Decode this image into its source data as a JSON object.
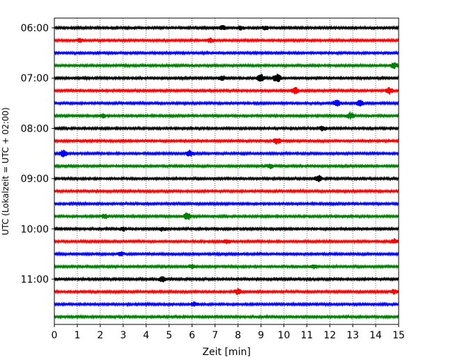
{
  "chart_data": {
    "type": "line",
    "title": "",
    "xlabel": "Zeit  [min]",
    "ylabel": "UTC (Lokalzeit = UTC + 02:00)",
    "xlim": [
      0,
      15
    ],
    "x_ticks": [
      "0",
      "1",
      "2",
      "3",
      "4",
      "5",
      "6",
      "7",
      "8",
      "9",
      "10",
      "11",
      "12",
      "13",
      "14",
      "15"
    ],
    "y_ticks": [
      "06:00",
      "07:00",
      "08:00",
      "09:00",
      "10:00",
      "11:00"
    ],
    "grid": "vertical dotted at each minute",
    "trace_minutes": 15,
    "trace_start": "06:00",
    "trace_count": 24,
    "colors": [
      "#000000",
      "#ff0000",
      "#0000ff",
      "#008000"
    ],
    "events": [
      {
        "trace": 0,
        "minute": 7.3,
        "amp": 1.6
      },
      {
        "trace": 0,
        "minute": 8.1,
        "amp": 1.4
      },
      {
        "trace": 0,
        "minute": 9.2,
        "amp": 1.3
      },
      {
        "trace": 1,
        "minute": 1.1,
        "amp": 1.4
      },
      {
        "trace": 1,
        "minute": 6.8,
        "amp": 1.4
      },
      {
        "trace": 3,
        "minute": 14.8,
        "amp": 1.8
      },
      {
        "trace": 4,
        "minute": 7.3,
        "amp": 2.0
      },
      {
        "trace": 4,
        "minute": 9.0,
        "amp": 2.6
      },
      {
        "trace": 4,
        "minute": 9.7,
        "amp": 3.2
      },
      {
        "trace": 5,
        "minute": 10.5,
        "amp": 2.0
      },
      {
        "trace": 5,
        "minute": 14.6,
        "amp": 2.2
      },
      {
        "trace": 6,
        "minute": 12.3,
        "amp": 2.4
      },
      {
        "trace": 6,
        "minute": 13.3,
        "amp": 2.0
      },
      {
        "trace": 7,
        "minute": 2.1,
        "amp": 1.4
      },
      {
        "trace": 7,
        "minute": 12.9,
        "amp": 2.2
      },
      {
        "trace": 8,
        "minute": 11.7,
        "amp": 1.5
      },
      {
        "trace": 9,
        "minute": 9.7,
        "amp": 2.0
      },
      {
        "trace": 10,
        "minute": 0.4,
        "amp": 2.6
      },
      {
        "trace": 10,
        "minute": 5.9,
        "amp": 2.2
      },
      {
        "trace": 11,
        "minute": 9.4,
        "amp": 1.5
      },
      {
        "trace": 12,
        "minute": 11.5,
        "amp": 2.0
      },
      {
        "trace": 15,
        "minute": 5.8,
        "amp": 2.6
      },
      {
        "trace": 15,
        "minute": 2.2,
        "amp": 1.4
      },
      {
        "trace": 16,
        "minute": 3.0,
        "amp": 1.3
      },
      {
        "trace": 16,
        "minute": 4.7,
        "amp": 1.3
      },
      {
        "trace": 17,
        "minute": 7.5,
        "amp": 1.4
      },
      {
        "trace": 17,
        "minute": 14.8,
        "amp": 1.5
      },
      {
        "trace": 18,
        "minute": 2.9,
        "amp": 1.2
      },
      {
        "trace": 19,
        "minute": 6.0,
        "amp": 1.4
      },
      {
        "trace": 19,
        "minute": 11.3,
        "amp": 1.4
      },
      {
        "trace": 20,
        "minute": 4.7,
        "amp": 1.8
      },
      {
        "trace": 21,
        "minute": 8.0,
        "amp": 1.8
      },
      {
        "trace": 21,
        "minute": 14.8,
        "amp": 1.5
      },
      {
        "trace": 22,
        "minute": 6.1,
        "amp": 1.3
      }
    ]
  }
}
